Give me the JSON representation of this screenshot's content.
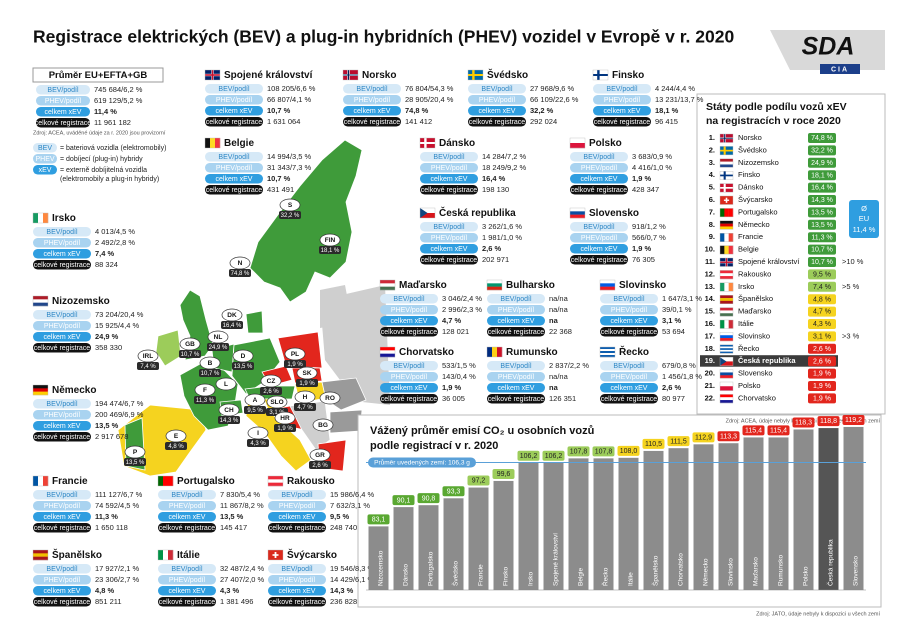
{
  "header": {
    "title": "Registrace elektrických (BEV) a plug-in hybridních (PHEV) vozidel v Evropě v r. 2020",
    "logo": "SDA",
    "logo_sub": "CIA"
  },
  "labels": {
    "bev": "BEV/podíl",
    "phev": "PHEV/podíl",
    "xev": "celkem xEV",
    "total": "celkové registrace"
  },
  "average": {
    "title": "Průměr EU+EFTA+GB",
    "bev": "745 684/6,2 %",
    "phev": "619 129/5,2 %",
    "xev": "11,4 %",
    "total": "11 961 182",
    "source": "Zdroj: ACEA, uváděné údaje za r. 2020 jsou provizorní"
  },
  "legend": [
    {
      "term": "BEV",
      "lines": [
        "= bateriová vozidla (elektromobily)"
      ]
    },
    {
      "term": "PHEV",
      "lines": [
        "= dobíjecí (plug-in) hybridy"
      ]
    },
    {
      "term": "xEV",
      "lines": [
        "= externě dobíjitelná vozidla",
        "(elektromobily a plug-in hybridy)"
      ]
    }
  ],
  "countries": [
    {
      "name": "Spojené království",
      "bev": "108 205/6,6 %",
      "phev": "66 807/4,1 %",
      "xev": "10,7 %",
      "total": "1 631 064"
    },
    {
      "name": "Norsko",
      "bev": "76 804/54,3 %",
      "phev": "28 905/20,4 %",
      "xev": "74,8 %",
      "total": "141 412"
    },
    {
      "name": "Švédsko",
      "bev": "27 968/9,6 %",
      "phev": "66 109/22,6 %",
      "xev": "32,2 %",
      "total": "292 024"
    },
    {
      "name": "Finsko",
      "bev": "4 244/4,4 %",
      "phev": "13 231/13,7 %",
      "xev": "18,1 %",
      "total": "96 415"
    },
    {
      "name": "Belgie",
      "bev": "14 994/3,5 %",
      "phev": "31 343/7,3 %",
      "xev": "10,7 %",
      "total": "431 491"
    },
    {
      "name": "Dánsko",
      "bev": "14 284/7,2 %",
      "phev": "18 249/9,2 %",
      "xev": "16,4 %",
      "total": "198 130"
    },
    {
      "name": "Polsko",
      "bev": "3 683/0,9 %",
      "phev": "4 416/1,0 %",
      "xev": "1,9 %",
      "total": "428 347"
    },
    {
      "name": "Irsko",
      "bev": "4 013/4,5 %",
      "phev": "2 492/2,8 %",
      "xev": "7,4 %",
      "total": "88 324"
    },
    {
      "name": "Česká republika",
      "bev": "3 262/1,6 %",
      "phev": "1 981/1,0 %",
      "xev": "2,6 %",
      "total": "202 971"
    },
    {
      "name": "Slovensko",
      "bev": "918/1,2 %",
      "phev": "566/0,7 %",
      "xev": "1,9 %",
      "total": "76 305"
    },
    {
      "name": "Nizozemsko",
      "bev": "73 204/20,4 %",
      "phev": "15 925/4,4 %",
      "xev": "24,9 %",
      "total": "358 330"
    },
    {
      "name": "Maďarsko",
      "bev": "3 046/2,4 %",
      "phev": "2 996/2,3 %",
      "xev": "4,7 %",
      "total": "128 021"
    },
    {
      "name": "Bulharsko",
      "bev": "na/na",
      "phev": "na/na",
      "xev": "na",
      "total": "22 368"
    },
    {
      "name": "Slovinsko",
      "bev": "1 647/3,1 %",
      "phev": "39/0,1 %",
      "xev": "3,1 %",
      "total": "53 694"
    },
    {
      "name": "Německo",
      "bev": "194 474/6,7 %",
      "phev": "200 469/6,9 %",
      "xev": "13,5 %",
      "total": "2 917 678"
    },
    {
      "name": "Chorvatsko",
      "bev": "533/1,5 %",
      "phev": "143/0,4 %",
      "xev": "1,9 %",
      "total": "36 005"
    },
    {
      "name": "Rumunsko",
      "bev": "2 837/2,2 %",
      "phev": "na/na",
      "xev": "na",
      "total": "126 351"
    },
    {
      "name": "Řecko",
      "bev": "679/0,8 %",
      "phev": "1 456/1,8 %",
      "xev": "2,6 %",
      "total": "80 977"
    },
    {
      "name": "Francie",
      "bev": "111 127/6,7 %",
      "phev": "74 592/4,5 %",
      "xev": "11,3 %",
      "total": "1 650 118"
    },
    {
      "name": "Portugalsko",
      "bev": "7 830/5,4 %",
      "phev": "11 867/8,2 %",
      "xev": "13,5 %",
      "total": "145 417"
    },
    {
      "name": "Rakousko",
      "bev": "15 986/6,4 %",
      "phev": "7 632/3,1 %",
      "xev": "9,5 %",
      "total": "248 740"
    },
    {
      "name": "Španělsko",
      "bev": "17 927/2,1 %",
      "phev": "23 306/2,7 %",
      "xev": "4,8 %",
      "total": "851 211"
    },
    {
      "name": "Itálie",
      "bev": "32 487/2,4 %",
      "phev": "27 407/2,0 %",
      "xev": "4,3 %",
      "total": "1 381 496"
    },
    {
      "name": "Švýcarsko",
      "bev": "19 546/8,3 %",
      "phev": "14 429/6,1 %",
      "xev": "14,3 %",
      "total": "236 828"
    }
  ],
  "map_markers": [
    {
      "code": "S",
      "value": "32,2 %"
    },
    {
      "code": "FIN",
      "value": "18,1 %"
    },
    {
      "code": "N",
      "value": "74,8 %"
    },
    {
      "code": "DK",
      "value": "16,4 %"
    },
    {
      "code": "GB",
      "value": "10,7 %"
    },
    {
      "code": "IRL",
      "value": "7,4 %"
    },
    {
      "code": "NL",
      "value": "24,9 %"
    },
    {
      "code": "B",
      "value": "10,7 %"
    },
    {
      "code": "D",
      "value": "13,5 %"
    },
    {
      "code": "PL",
      "value": "1,9 %"
    },
    {
      "code": "CZ",
      "value": "2,6 %"
    },
    {
      "code": "SK",
      "value": "1,9 %"
    },
    {
      "code": "F",
      "value": "11,3 %"
    },
    {
      "code": "L"
    },
    {
      "code": "CH",
      "value": "14,3 %"
    },
    {
      "code": "A",
      "value": "9,5 %"
    },
    {
      "code": "SLO",
      "value": "3,1 %"
    },
    {
      "code": "H",
      "value": "4,7 %"
    },
    {
      "code": "HR",
      "value": "1,9 %"
    },
    {
      "code": "RO"
    },
    {
      "code": "BG"
    },
    {
      "code": "GR",
      "value": "2,6 %"
    },
    {
      "code": "E",
      "value": "4,8 %"
    },
    {
      "code": "P",
      "value": "13,5 %"
    },
    {
      "code": "I",
      "value": "4,3 %"
    }
  ],
  "ranking": {
    "title_lines": [
      "Státy podle podílu vozů xEV",
      "na registracích v roce 2020"
    ],
    "rows": [
      {
        "rank": "1.",
        "name": "Norsko",
        "value": "74,8 %",
        "color": "#3f9b3a"
      },
      {
        "rank": "2.",
        "name": "Švédsko",
        "value": "32,2 %",
        "color": "#3f9b3a"
      },
      {
        "rank": "3.",
        "name": "Nizozemsko",
        "value": "24,9 %",
        "color": "#3f9b3a"
      },
      {
        "rank": "4.",
        "name": "Finsko",
        "value": "18,1 %",
        "color": "#3f9b3a"
      },
      {
        "rank": "5.",
        "name": "Dánsko",
        "value": "16,4 %",
        "color": "#3f9b3a"
      },
      {
        "rank": "6.",
        "name": "Švýcarsko",
        "value": "14,3 %",
        "color": "#3f9b3a"
      },
      {
        "rank": "7.",
        "name": "Portugalsko",
        "value": "13,5 %",
        "color": "#3f9b3a"
      },
      {
        "rank": "8.",
        "name": "Německo",
        "value": "13,5 %",
        "color": "#3f9b3a"
      },
      {
        "rank": "9.",
        "name": "Francie",
        "value": "11,3 %",
        "color": "#3f9b3a"
      },
      {
        "rank": "10.",
        "name": "Belgie",
        "value": "10,7 %",
        "color": "#3f9b3a"
      },
      {
        "rank": "11.",
        "name": "Spojené království",
        "value": "10,7 %",
        "color": "#3f9b3a",
        "note": ">10 %"
      },
      {
        "rank": "12.",
        "name": "Rakousko",
        "value": "9,5 %",
        "color": "#9ccc5a"
      },
      {
        "rank": "13.",
        "name": "Irsko",
        "value": "7,4 %",
        "color": "#9ccc5a",
        "note": ">5 %"
      },
      {
        "rank": "14.",
        "name": "Španělsko",
        "value": "4,8 %",
        "color": "#f5d31f"
      },
      {
        "rank": "15.",
        "name": "Maďarsko",
        "value": "4,7 %",
        "color": "#f5d31f"
      },
      {
        "rank": "16.",
        "name": "Itálie",
        "value": "4,3 %",
        "color": "#f5d31f"
      },
      {
        "rank": "17.",
        "name": "Slovinsko",
        "value": "3,1 %",
        "color": "#f5d31f",
        "note": ">3 %"
      },
      {
        "rank": "18.",
        "name": "Řecko",
        "value": "2,6 %",
        "color": "#e2261d"
      },
      {
        "rank": "19.",
        "name": "Česká republika",
        "value": "2,6 %",
        "color": "#e2261d",
        "background": "#3b3b3b"
      },
      {
        "rank": "20.",
        "name": "Slovensko",
        "value": "1,9 %",
        "color": "#e2261d"
      },
      {
        "rank": "21.",
        "name": "Polsko",
        "value": "1,9 %",
        "color": "#e2261d"
      },
      {
        "rank": "22.",
        "name": "Chorvatsko",
        "value": "1,9 %",
        "color": "#e2261d"
      }
    ],
    "eu_badge": {
      "symbol": "Ø",
      "label": "EU",
      "value": "11,4 %"
    },
    "source": "Zdroj: ACEA, údaje nebyly k dispozici u všech evropských zemí"
  },
  "chart_data": {
    "type": "bar",
    "title_lines": [
      "Vážený průměr emisí CO₂ u osobních vozů",
      "podle registrací v r. 2020"
    ],
    "categories": [
      "Nizozemsko",
      "Dánsko",
      "Portugalsko",
      "Švédsko",
      "Francie",
      "Finsko",
      "Irsko",
      "Spojené království",
      "Belgie",
      "Řecko",
      "Itálie",
      "Španělsko",
      "Chorvatsko",
      "Německo",
      "Slovinsko",
      "Maďarsko",
      "Rumunsko",
      "Polsko",
      "Česká republika",
      "Slovensko"
    ],
    "values": [
      83.1,
      90.1,
      90.8,
      93.3,
      97.2,
      99.6,
      106.2,
      106.2,
      107.8,
      107.8,
      108.0,
      110.5,
      111.5,
      112.9,
      113.3,
      115.4,
      115.4,
      118.3,
      118.8,
      119.2
    ],
    "value_labels": [
      "83,1",
      "90,1",
      "90,8",
      "93,3",
      "97,2",
      "99,6",
      "106,2",
      "106,2",
      "107,8",
      "107,8",
      "108,0",
      "110,5",
      "111,5",
      "112,9",
      "113,3",
      "115,4",
      "115,4",
      "118,3",
      "118,8",
      "119,2"
    ],
    "colors": [
      "#8c8c8c",
      "#8c8c8c",
      "#8c8c8c",
      "#8c8c8c",
      "#8c8c8c",
      "#8c8c8c",
      "#8c8c8c",
      "#8c8c8c",
      "#8c8c8c",
      "#8c8c8c",
      "#8c8c8c",
      "#8c8c8c",
      "#8c8c8c",
      "#8c8c8c",
      "#8c8c8c",
      "#8c8c8c",
      "#8c8c8c",
      "#8c8c8c",
      "#555555",
      "#8c8c8c"
    ],
    "label_colors": [
      "#5aa832",
      "#5aa832",
      "#5aa832",
      "#5aa832",
      "#9ccc5a",
      "#9ccc5a",
      "#9ccc5a",
      "#9ccc5a",
      "#9ccc5a",
      "#9ccc5a",
      "#f5d31f",
      "#f5d31f",
      "#f5d31f",
      "#f5d31f",
      "#e2261d",
      "#e2261d",
      "#e2261d",
      "#e2261d",
      "#e2261d",
      "#e2261d"
    ],
    "ylim": [
      60,
      125
    ],
    "reference": {
      "value": 106.3,
      "label": "Průměr uvedených zemí: 106,3 g"
    },
    "source": "Zdroj: JATO, údaje nebyly k dispozici u všech zemí"
  }
}
